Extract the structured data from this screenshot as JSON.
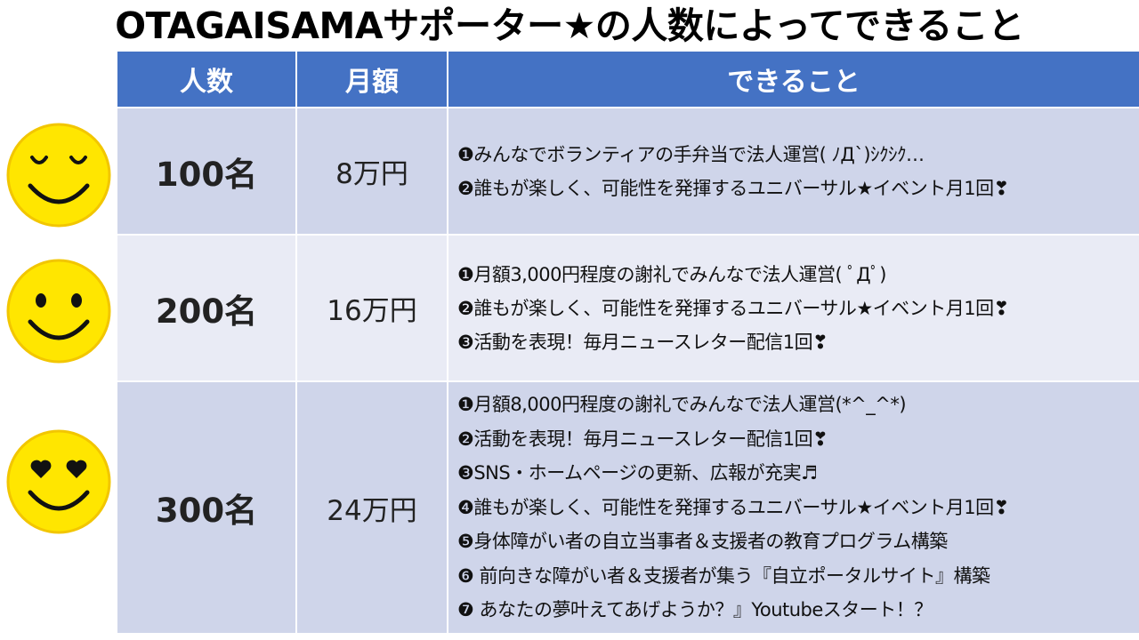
{
  "title": "OTAGAISAMAサポーター★の人数によってできること",
  "table": {
    "headers": {
      "count": "人数",
      "fee": "月額",
      "benefits": "できること"
    },
    "rows": [
      {
        "count": "100名",
        "fee": "8万円",
        "items": [
          "❶みんなでボランティアの手弁当で法人運営( ﾉД`)ｼｸｼｸ…",
          "❷誰もが楽しく、可能性を発揮するユニバーサル★イベント月1回❣"
        ]
      },
      {
        "count": "200名",
        "fee": "16万円",
        "items": [
          "❶月額3,000円程度の謝礼でみんなで法人運営( ﾟДﾟ)",
          "❷誰もが楽しく、可能性を発揮するユニバーサル★イベント月1回❣",
          "❸活動を表現！毎月ニュースレター配信1回❣"
        ]
      },
      {
        "count": "300名",
        "fee": "24万円",
        "items": [
          "❶月額8,000円程度の謝礼でみんなで法人運営(*^_^*)",
          "❷活動を表現！毎月ニュースレター配信1回❣",
          "❸SNS・ホームページの更新、広報が充実♬",
          "❹誰もが楽しく、可能性を発揮するユニバーサル★イベント月1回❣",
          "❺身体障がい者の自立当事者＆支援者の教育プログラム構築",
          "❻ 前向きな障がい者＆支援者が集う『自立ポータルサイト』構築",
          "❼ あなたの夢叶えてあげようか？』Youtubeスタート！？"
        ]
      }
    ]
  },
  "colors": {
    "header_bg": "#4472c4",
    "row_dark": "#cfd5ea",
    "row_light": "#e9ebf5",
    "smiley_fill": "#ffe600",
    "smiley_outline": "#f2c600"
  },
  "icons": [
    "smiley-closed-eyes-icon",
    "smiley-dot-eyes-icon",
    "smiley-heart-eyes-icon"
  ]
}
